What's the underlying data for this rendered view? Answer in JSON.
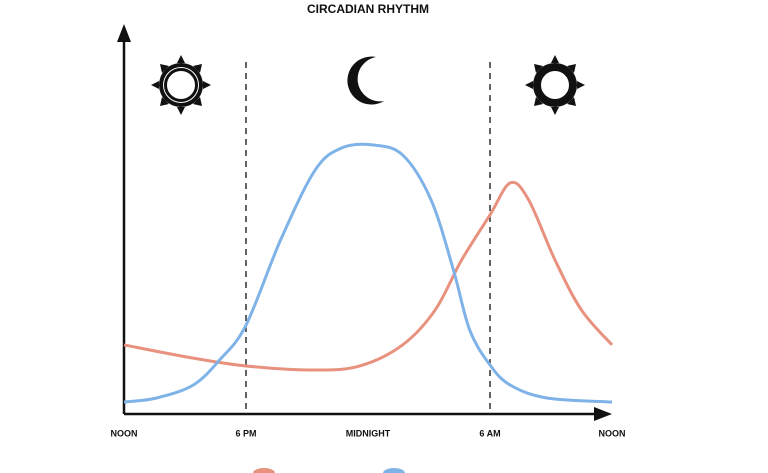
{
  "chart_data": {
    "type": "line",
    "title": "CIRCADIAN RHYTHM",
    "xlim": [
      0,
      24
    ],
    "ylim": [
      0,
      100
    ],
    "xticks": [
      {
        "value": 0,
        "label": "NOON"
      },
      {
        "value": 6,
        "label": "6 PM"
      },
      {
        "value": 12,
        "label": "MIDNIGHT"
      },
      {
        "value": 18,
        "label": "6 AM"
      },
      {
        "value": 24,
        "label": "NOON"
      }
    ],
    "dashed_ticks": [
      1,
      3
    ],
    "series": [
      {
        "color": "#e8917f",
        "x": [
          0,
          3.4,
          6,
          9.4,
          11.6,
          13.7,
          15.3,
          16.6,
          18,
          19,
          19.9,
          21.2,
          22.5,
          24
        ],
        "values": [
          22,
          17.8,
          15.3,
          14,
          15.3,
          22,
          33.1,
          49,
          63.4,
          73.6,
          68.2,
          49,
          33.1,
          22
        ]
      },
      {
        "color": "#7fb3e8",
        "x": [
          0,
          1.6,
          3.4,
          4.7,
          6,
          7.7,
          9.4,
          10.7,
          12.2,
          13.7,
          15.1,
          16.2,
          17,
          18,
          19,
          20.8,
          24
        ],
        "values": [
          3.8,
          5.1,
          9.2,
          17.2,
          28.3,
          55.4,
          77.7,
          84.7,
          85.7,
          82.5,
          68.2,
          45.9,
          26.8,
          15.6,
          9.2,
          5.1,
          3.8
        ]
      }
    ]
  }
}
